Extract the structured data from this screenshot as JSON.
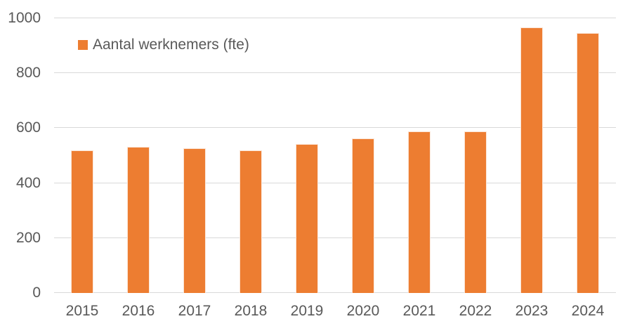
{
  "chart_data": {
    "type": "bar",
    "title": "",
    "xlabel": "",
    "ylabel": "",
    "categories": [
      "2015",
      "2016",
      "2017",
      "2018",
      "2019",
      "2020",
      "2021",
      "2022",
      "2023",
      "2024"
    ],
    "series": [
      {
        "name": "Aantal werknemers (fte)",
        "values": [
          520,
          533,
          528,
          518,
          542,
          562,
          589,
          588,
          967,
          946
        ]
      }
    ],
    "ylim": [
      0,
      1000
    ],
    "yticks": [
      0,
      200,
      400,
      600,
      800,
      1000
    ],
    "grid": true,
    "legend_position": "top-left-inside",
    "colors": {
      "bar": "#ED7D31",
      "bar_border": "#FBE5D6",
      "gridline": "#D9D9D9",
      "axis_text": "#595959",
      "background": "#FFFFFF"
    }
  }
}
